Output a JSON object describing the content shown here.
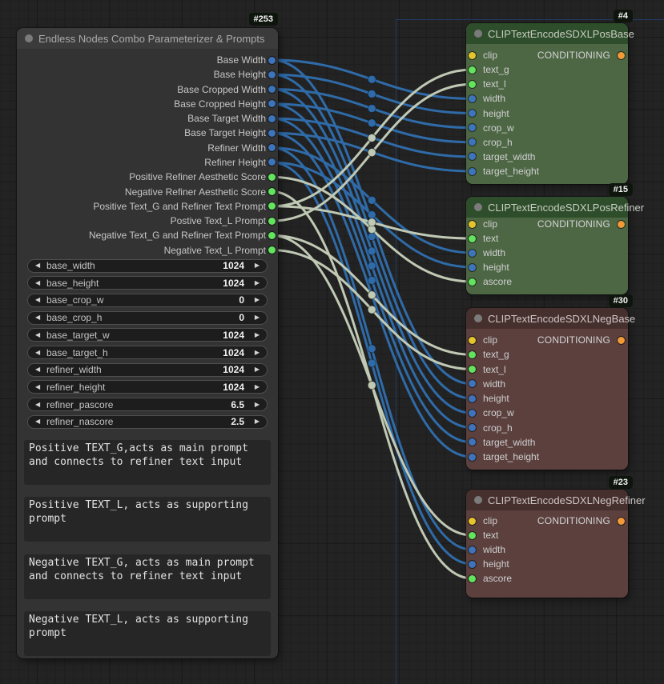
{
  "icons": {
    "left_arrow": "◀",
    "right_arrow": "▶",
    "collapse_dot": "circle"
  },
  "colors": {
    "canvas_bg": "#232323",
    "boundary": "#223a63",
    "main": {
      "header": "#3b3b3b",
      "body": "#333333",
      "title_text": "#aaaaaa"
    },
    "green": {
      "header": "#2e4d2a",
      "body": "#4d6744",
      "title_text": "#c8cdc3"
    },
    "red": {
      "header": "#46302e",
      "body": "#5b403e",
      "title_text": "#cdc5c3"
    },
    "slot": {
      "int": "#3d74bc",
      "float": "#62e45e",
      "string": "#62e45e",
      "clip": "#e6c42c",
      "conditioning": "#f09a38"
    },
    "wire": {
      "int": "#2f6ba8",
      "float": "#c0c9b4",
      "string": "#c0c9b4"
    },
    "badge_bg": "#0d150d"
  },
  "main_node": {
    "id": "#253",
    "title": "Endless Nodes Combo Parameterizer & Prompts",
    "outputs": [
      {
        "label": "Base Width",
        "type": "int"
      },
      {
        "label": "Base Height",
        "type": "int"
      },
      {
        "label": "Base Cropped Width",
        "type": "int"
      },
      {
        "label": "Base Cropped Height",
        "type": "int"
      },
      {
        "label": "Base Target Width",
        "type": "int"
      },
      {
        "label": "Base Target Height",
        "type": "int"
      },
      {
        "label": "Refiner Width",
        "type": "int"
      },
      {
        "label": "Refiner Height",
        "type": "int"
      },
      {
        "label": "Positive Refiner Aesthetic Score",
        "type": "float"
      },
      {
        "label": "Negative Refiner Aesthetic Score",
        "type": "float"
      },
      {
        "label": "Positive Text_G and Refiner Text Prompt",
        "type": "string"
      },
      {
        "label": "Postive Text_L Prompt",
        "type": "string"
      },
      {
        "label": "Negative Text_G and Refiner Text Prompt",
        "type": "string"
      },
      {
        "label": "Negative Text_L Prompt",
        "type": "string"
      }
    ],
    "widgets": [
      {
        "name": "base_width",
        "value": "1024"
      },
      {
        "name": "base_height",
        "value": "1024"
      },
      {
        "name": "base_crop_w",
        "value": "0"
      },
      {
        "name": "base_crop_h",
        "value": "0"
      },
      {
        "name": "base_target_w",
        "value": "1024"
      },
      {
        "name": "base_target_h",
        "value": "1024"
      },
      {
        "name": "refiner_width",
        "value": "1024"
      },
      {
        "name": "refiner_height",
        "value": "1024"
      },
      {
        "name": "refiner_pascore",
        "value": "6.5"
      },
      {
        "name": "refiner_nascore",
        "value": "2.5"
      }
    ],
    "textareas": [
      "Positive TEXT_G,acts as main prompt and connects to refiner text input",
      "Positive TEXT_L, acts as supporting prompt",
      "Negative TEXT_G, acts as main prompt and connects to refiner text input",
      "Negative TEXT_L, acts as supporting prompt"
    ]
  },
  "clip_nodes": [
    {
      "id": "#4",
      "title": "CLIPTextEncodeSDXLPosBase",
      "theme": "green",
      "output_label": "CONDITIONING",
      "inputs": [
        {
          "name": "clip",
          "type": "clip"
        },
        {
          "name": "text_g",
          "type": "string"
        },
        {
          "name": "text_l",
          "type": "string"
        },
        {
          "name": "width",
          "type": "int"
        },
        {
          "name": "height",
          "type": "int"
        },
        {
          "name": "crop_w",
          "type": "int"
        },
        {
          "name": "crop_h",
          "type": "int"
        },
        {
          "name": "target_width",
          "type": "int"
        },
        {
          "name": "target_height",
          "type": "int"
        }
      ]
    },
    {
      "id": "#15",
      "title": "CLIPTextEncodeSDXLPosRefiner",
      "theme": "green",
      "output_label": "CONDITIONING",
      "inputs": [
        {
          "name": "clip",
          "type": "clip"
        },
        {
          "name": "text",
          "type": "string"
        },
        {
          "name": "width",
          "type": "int"
        },
        {
          "name": "height",
          "type": "int"
        },
        {
          "name": "ascore",
          "type": "float"
        }
      ]
    },
    {
      "id": "#30",
      "title": "CLIPTextEncodeSDXLNegBase",
      "theme": "red",
      "output_label": "CONDITIONING",
      "inputs": [
        {
          "name": "clip",
          "type": "clip"
        },
        {
          "name": "text_g",
          "type": "string"
        },
        {
          "name": "text_l",
          "type": "string"
        },
        {
          "name": "width",
          "type": "int"
        },
        {
          "name": "height",
          "type": "int"
        },
        {
          "name": "crop_w",
          "type": "int"
        },
        {
          "name": "crop_h",
          "type": "int"
        },
        {
          "name": "target_width",
          "type": "int"
        },
        {
          "name": "target_height",
          "type": "int"
        }
      ]
    },
    {
      "id": "#23",
      "title": "CLIPTextEncodeSDXLNegRefiner",
      "theme": "red",
      "output_label": "CONDITIONING",
      "inputs": [
        {
          "name": "clip",
          "type": "clip"
        },
        {
          "name": "text",
          "type": "string"
        },
        {
          "name": "width",
          "type": "int"
        },
        {
          "name": "height",
          "type": "int"
        },
        {
          "name": "ascore",
          "type": "float"
        }
      ]
    }
  ],
  "connections": [
    {
      "from": "Base Width",
      "to": [
        "#4",
        "width"
      ]
    },
    {
      "from": "Base Height",
      "to": [
        "#4",
        "height"
      ]
    },
    {
      "from": "Base Cropped Width",
      "to": [
        "#4",
        "crop_w"
      ]
    },
    {
      "from": "Base Cropped Height",
      "to": [
        "#4",
        "crop_h"
      ]
    },
    {
      "from": "Base Target Width",
      "to": [
        "#4",
        "target_width"
      ]
    },
    {
      "from": "Base Target Height",
      "to": [
        "#4",
        "target_height"
      ]
    },
    {
      "from": "Base Width",
      "to": [
        "#30",
        "width"
      ]
    },
    {
      "from": "Base Height",
      "to": [
        "#30",
        "height"
      ]
    },
    {
      "from": "Base Cropped Width",
      "to": [
        "#30",
        "crop_w"
      ]
    },
    {
      "from": "Base Cropped Height",
      "to": [
        "#30",
        "crop_h"
      ]
    },
    {
      "from": "Base Target Width",
      "to": [
        "#30",
        "target_width"
      ]
    },
    {
      "from": "Base Target Height",
      "to": [
        "#30",
        "target_height"
      ]
    },
    {
      "from": "Refiner Width",
      "to": [
        "#15",
        "width"
      ]
    },
    {
      "from": "Refiner Height",
      "to": [
        "#15",
        "height"
      ]
    },
    {
      "from": "Refiner Width",
      "to": [
        "#23",
        "width"
      ]
    },
    {
      "from": "Refiner Height",
      "to": [
        "#23",
        "height"
      ]
    },
    {
      "from": "Positive Refiner Aesthetic Score",
      "to": [
        "#15",
        "ascore"
      ]
    },
    {
      "from": "Negative Refiner Aesthetic Score",
      "to": [
        "#23",
        "ascore"
      ]
    },
    {
      "from": "Positive Text_G and Refiner Text Prompt",
      "to": [
        "#4",
        "text_g"
      ]
    },
    {
      "from": "Positive Text_G and Refiner Text Prompt",
      "to": [
        "#15",
        "text"
      ]
    },
    {
      "from": "Postive Text_L Prompt",
      "to": [
        "#4",
        "text_l"
      ]
    },
    {
      "from": "Negative Text_G and Refiner Text Prompt",
      "to": [
        "#30",
        "text_g"
      ]
    },
    {
      "from": "Negative Text_G and Refiner Text Prompt",
      "to": [
        "#23",
        "text"
      ]
    },
    {
      "from": "Negative Text_L Prompt",
      "to": [
        "#30",
        "text_l"
      ]
    }
  ]
}
